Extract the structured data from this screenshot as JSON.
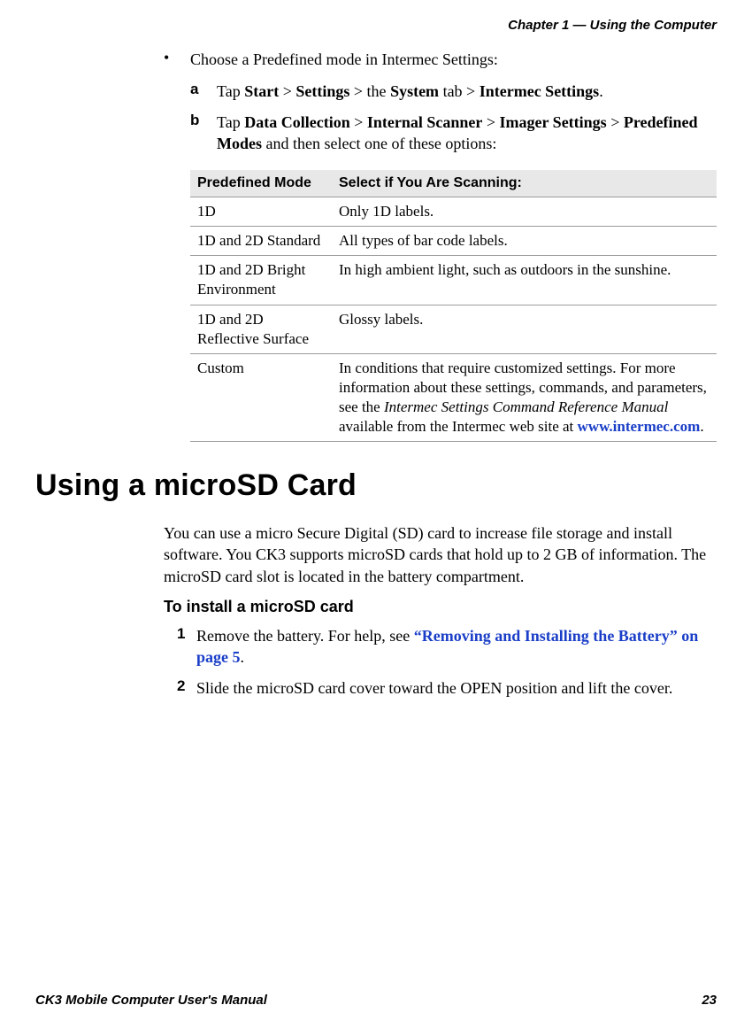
{
  "header": {
    "chapter": "Chapter 1 — Using the Computer"
  },
  "footer": {
    "manual": "CK3 Mobile Computer User's Manual",
    "page": "23"
  },
  "bullet1": {
    "text": "Choose a Predefined mode in Intermec Settings:"
  },
  "subA": {
    "marker": "a",
    "pre": "Tap ",
    "b1": "Start",
    "s1": " > ",
    "b2": "Settings",
    "s2": " > the ",
    "b3": "System",
    "s3": " tab > ",
    "b4": "Intermec Settings",
    "s4": "."
  },
  "subB": {
    "marker": "b",
    "pre": "Tap ",
    "b1": "Data Collection",
    "s1": " > ",
    "b2": "Internal Scanner",
    "s2": " > ",
    "b3": "Imager Settings",
    "s3": " > ",
    "b4": "Predefined Modes",
    "s4": " and then select one of these options:"
  },
  "table": {
    "headers": {
      "mode": "Predefined Mode",
      "desc": "Select if You Are Scanning:"
    },
    "rows": [
      {
        "mode": "1D",
        "desc": "Only 1D labels."
      },
      {
        "mode": "1D and 2D Standard",
        "desc": "All types of bar code labels."
      },
      {
        "mode": "1D and 2D Bright Environment",
        "desc": "In high ambient light, such as outdoors in the sunshine."
      },
      {
        "mode": "1D and 2D Reflective Surface",
        "desc": "Glossy labels."
      },
      {
        "mode": "Custom",
        "descPre": "In conditions that require customized settings. For more information about these settings, commands, and parameters, see the ",
        "descItalic": "Intermec Settings Command Reference Manual",
        "descMid": " available from the Intermec web site at ",
        "descLink": "www.intermec.com",
        "descEnd": "."
      }
    ]
  },
  "section": {
    "title": "Using a microSD Card",
    "para": "You can use a micro Secure Digital (SD) card to increase file storage and install software. You CK3 supports microSD cards that hold up to 2 GB of information. The microSD card slot is located in the battery compartment.",
    "subhead": "To install a microSD card"
  },
  "steps": {
    "s1": {
      "marker": "1",
      "pre": "Remove the battery. For help, see ",
      "link": "“Removing and Installing the Battery” on page 5",
      "end": "."
    },
    "s2": {
      "marker": "2",
      "text": "Slide the microSD card cover toward the OPEN position and lift the cover."
    }
  }
}
